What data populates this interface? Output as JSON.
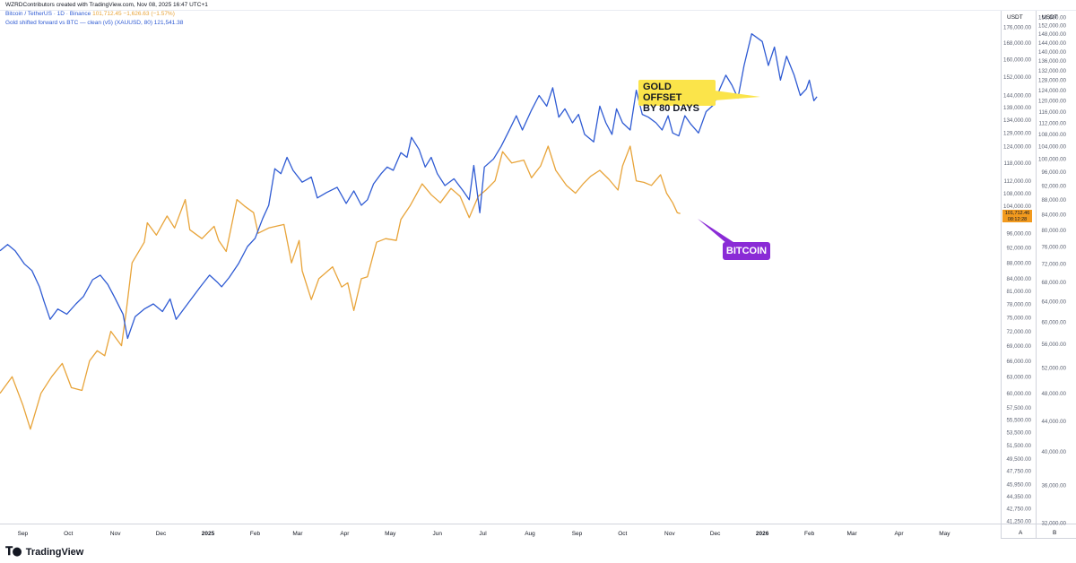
{
  "header": {
    "attribution": "WZRDContributors created with TradingView.com, Nov 08, 2025 16:47 UTC+1",
    "series1_name": "Bitcoin / TetherUS · 1D · Binance",
    "series1_values": "101,712.45  −1,626.63 (−1.57%)",
    "series2_label": "Gold shifted forward vs BTC — clean (v5) (XAUUSD, 80)  121,541.38"
  },
  "axis_units": {
    "left": "USDT",
    "right": "USDT"
  },
  "annotations": {
    "gold": [
      "GOLD OFFSET",
      "BY 80 DAYS"
    ],
    "bitcoin": "BITCOIN"
  },
  "last_price": {
    "value": "101,712.46",
    "countdown": "08:12:28"
  },
  "footer": {
    "brand": "TradingView",
    "btn_a": "A",
    "btn_b": "B"
  },
  "colors": {
    "bitcoin": "#e8a43a",
    "gold_shifted": "#2f5bd3",
    "annotation_gold": "#fbe44a",
    "annotation_btc": "#8a2bd6",
    "last_tag": "#f29a1e"
  },
  "chart_data": {
    "type": "line",
    "x_tick_labels": [
      "Sep",
      "Oct",
      "Nov",
      "Dec",
      "2025",
      "Feb",
      "Mar",
      "Apr",
      "May",
      "Jun",
      "Jul",
      "Aug",
      "Sep",
      "Oct",
      "Nov",
      "Dec",
      "2026",
      "Feb",
      "Mar",
      "Apr",
      "May"
    ],
    "xlim": [
      "2024-08-17",
      "2026-06-07"
    ],
    "left_axis": {
      "unit": "USDT",
      "scale": "log",
      "tick_labels": [
        "176,000.00",
        "168,000.00",
        "160,000.00",
        "152,000.00",
        "144,000.00",
        "139,000.00",
        "134,000.00",
        "129,000.00",
        "124,000.00",
        "118,000.00",
        "112,000.00",
        "108,000.00",
        "104,000.00",
        "100,000.00",
        "96,000.00",
        "92,000.00",
        "88,000.00",
        "84,000.00",
        "81,000.00",
        "78,000.00",
        "75,000.00",
        "72,000.00",
        "69,000.00",
        "66,000.00",
        "63,000.00",
        "60,000.00",
        "57,500.00",
        "55,500.00",
        "53,500.00",
        "51,500.00",
        "49,500.00",
        "47,750.00",
        "45,950.00",
        "44,350.00",
        "42,750.00",
        "41,250.00"
      ],
      "tick_values": [
        176000,
        168000,
        160000,
        152000,
        144000,
        139000,
        134000,
        129000,
        124000,
        118000,
        112000,
        108000,
        104000,
        100000,
        96000,
        92000,
        88000,
        84000,
        81000,
        78000,
        75000,
        72000,
        69000,
        66000,
        63000,
        60000,
        57500,
        55500,
        53500,
        51500,
        49500,
        47750,
        45950,
        44350,
        42750,
        41250
      ]
    },
    "right_axis": {
      "unit": "USDT",
      "scale": "log",
      "tick_labels": [
        "156,000.00",
        "152,000.00",
        "148,000.00",
        "144,000.00",
        "140,000.00",
        "136,000.00",
        "132,000.00",
        "128,000.00",
        "124,000.00",
        "120,000.00",
        "116,000.00",
        "112,000.00",
        "108,000.00",
        "104,000.00",
        "100,000.00",
        "96,000.00",
        "92,000.00",
        "88,000.00",
        "84,000.00",
        "80,000.00",
        "76,000.00",
        "72,000.00",
        "68,000.00",
        "64,000.00",
        "60,000.00",
        "56,000.00",
        "52,000.00",
        "48,000.00",
        "44,000.00",
        "40,000.00",
        "36,000.00",
        "32,000.00"
      ],
      "tick_values": [
        156000,
        152000,
        148000,
        144000,
        140000,
        136000,
        132000,
        128000,
        124000,
        120000,
        116000,
        112000,
        108000,
        104000,
        100000,
        96000,
        92000,
        88000,
        84000,
        80000,
        76000,
        72000,
        68000,
        64000,
        60000,
        56000,
        52000,
        48000,
        44000,
        40000,
        36000,
        32000
      ]
    },
    "series": [
      {
        "name": "Bitcoin / TetherUS",
        "axis": "left",
        "points": [
          [
            "2024-08-17",
            60000
          ],
          [
            "2024-08-25",
            63000
          ],
          [
            "2024-09-01",
            58000
          ],
          [
            "2024-09-06",
            54000
          ],
          [
            "2024-09-13",
            60000
          ],
          [
            "2024-09-20",
            63000
          ],
          [
            "2024-09-27",
            65500
          ],
          [
            "2024-10-03",
            61000
          ],
          [
            "2024-10-10",
            60500
          ],
          [
            "2024-10-15",
            66000
          ],
          [
            "2024-10-20",
            68000
          ],
          [
            "2024-10-25",
            67000
          ],
          [
            "2024-10-29",
            72000
          ],
          [
            "2024-11-05",
            69000
          ],
          [
            "2024-11-08",
            76000
          ],
          [
            "2024-11-12",
            88000
          ],
          [
            "2024-11-20",
            93500
          ],
          [
            "2024-11-22",
            99000
          ],
          [
            "2024-11-28",
            95500
          ],
          [
            "2024-12-05",
            101000
          ],
          [
            "2024-12-10",
            97500
          ],
          [
            "2024-12-17",
            106000
          ],
          [
            "2024-12-20",
            97000
          ],
          [
            "2024-12-28",
            94500
          ],
          [
            "2025-01-05",
            98000
          ],
          [
            "2025-01-08",
            94000
          ],
          [
            "2025-01-13",
            91000
          ],
          [
            "2025-01-20",
            106000
          ],
          [
            "2025-01-25",
            104000
          ],
          [
            "2025-01-31",
            102000
          ],
          [
            "2025-02-03",
            96000
          ],
          [
            "2025-02-10",
            97500
          ],
          [
            "2025-02-20",
            98500
          ],
          [
            "2025-02-25",
            88000
          ],
          [
            "2025-03-02",
            94000
          ],
          [
            "2025-03-04",
            86000
          ],
          [
            "2025-03-10",
            79000
          ],
          [
            "2025-03-15",
            84000
          ],
          [
            "2025-03-24",
            87000
          ],
          [
            "2025-03-30",
            82000
          ],
          [
            "2025-04-03",
            83000
          ],
          [
            "2025-04-07",
            76500
          ],
          [
            "2025-04-12",
            84000
          ],
          [
            "2025-04-16",
            84500
          ],
          [
            "2025-04-22",
            93500
          ],
          [
            "2025-04-28",
            94500
          ],
          [
            "2025-05-05",
            94000
          ],
          [
            "2025-05-08",
            100000
          ],
          [
            "2025-05-14",
            104000
          ],
          [
            "2025-05-22",
            111000
          ],
          [
            "2025-05-28",
            107500
          ],
          [
            "2025-06-03",
            105000
          ],
          [
            "2025-06-10",
            109500
          ],
          [
            "2025-06-16",
            107000
          ],
          [
            "2025-06-22",
            100500
          ],
          [
            "2025-06-28",
            107000
          ],
          [
            "2025-07-03",
            109000
          ],
          [
            "2025-07-09",
            112000
          ],
          [
            "2025-07-14",
            122000
          ],
          [
            "2025-07-20",
            118000
          ],
          [
            "2025-07-28",
            119000
          ],
          [
            "2025-08-02",
            113000
          ],
          [
            "2025-08-08",
            117000
          ],
          [
            "2025-08-13",
            124000
          ],
          [
            "2025-08-18",
            115500
          ],
          [
            "2025-08-25",
            110500
          ],
          [
            "2025-08-31",
            108000
          ],
          [
            "2025-09-05",
            111000
          ],
          [
            "2025-09-10",
            113500
          ],
          [
            "2025-09-16",
            115500
          ],
          [
            "2025-09-22",
            112500
          ],
          [
            "2025-09-28",
            109000
          ],
          [
            "2025-10-01",
            117000
          ],
          [
            "2025-10-06",
            124000
          ],
          [
            "2025-10-10",
            112000
          ],
          [
            "2025-10-15",
            111500
          ],
          [
            "2025-10-20",
            110500
          ],
          [
            "2025-10-26",
            114000
          ],
          [
            "2025-10-30",
            108000
          ],
          [
            "2025-11-03",
            105000
          ],
          [
            "2025-11-06",
            102000
          ],
          [
            "2025-11-08",
            101712
          ]
        ]
      },
      {
        "name": "Gold shifted forward vs BTC — clean (v5) (XAUUSD, 80)",
        "axis": "right",
        "points": [
          [
            "2024-08-17",
            75000
          ],
          [
            "2024-08-22",
            76500
          ],
          [
            "2024-08-27",
            75000
          ],
          [
            "2024-09-02",
            72000
          ],
          [
            "2024-09-07",
            70500
          ],
          [
            "2024-09-12",
            67000
          ],
          [
            "2024-09-15",
            64000
          ],
          [
            "2024-09-19",
            60500
          ],
          [
            "2024-09-24",
            62500
          ],
          [
            "2024-09-30",
            61500
          ],
          [
            "2024-10-06",
            63500
          ],
          [
            "2024-10-11",
            65000
          ],
          [
            "2024-10-17",
            68500
          ],
          [
            "2024-10-22",
            69500
          ],
          [
            "2024-10-27",
            67500
          ],
          [
            "2024-11-01",
            64500
          ],
          [
            "2024-11-06",
            61500
          ],
          [
            "2024-11-09",
            57000
          ],
          [
            "2024-11-14",
            61000
          ],
          [
            "2024-11-20",
            62500
          ],
          [
            "2024-11-26",
            63500
          ],
          [
            "2024-12-02",
            62000
          ],
          [
            "2024-12-07",
            64500
          ],
          [
            "2024-12-11",
            60500
          ],
          [
            "2024-12-16",
            62500
          ],
          [
            "2024-12-21",
            64500
          ],
          [
            "2024-12-27",
            67000
          ],
          [
            "2025-01-02",
            69500
          ],
          [
            "2025-01-07",
            68000
          ],
          [
            "2025-01-10",
            67000
          ],
          [
            "2025-01-15",
            69000
          ],
          [
            "2025-01-21",
            72000
          ],
          [
            "2025-01-27",
            76000
          ],
          [
            "2025-02-01",
            78000
          ],
          [
            "2025-02-06",
            83000
          ],
          [
            "2025-02-10",
            86500
          ],
          [
            "2025-02-14",
            97000
          ],
          [
            "2025-02-18",
            95500
          ],
          [
            "2025-02-22",
            100500
          ],
          [
            "2025-02-26",
            96500
          ],
          [
            "2025-03-04",
            93000
          ],
          [
            "2025-03-10",
            94500
          ],
          [
            "2025-03-14",
            88500
          ],
          [
            "2025-03-20",
            90000
          ],
          [
            "2025-03-27",
            91500
          ],
          [
            "2025-04-02",
            87000
          ],
          [
            "2025-04-07",
            90500
          ],
          [
            "2025-04-12",
            86500
          ],
          [
            "2025-04-16",
            88000
          ],
          [
            "2025-04-20",
            92500
          ],
          [
            "2025-04-25",
            95500
          ],
          [
            "2025-04-29",
            97500
          ],
          [
            "2025-05-03",
            96500
          ],
          [
            "2025-05-08",
            102000
          ],
          [
            "2025-05-12",
            100500
          ],
          [
            "2025-05-15",
            107000
          ],
          [
            "2025-05-20",
            103000
          ],
          [
            "2025-05-24",
            97500
          ],
          [
            "2025-05-28",
            100500
          ],
          [
            "2025-06-01",
            95500
          ],
          [
            "2025-06-06",
            92000
          ],
          [
            "2025-06-12",
            94000
          ],
          [
            "2025-06-18",
            90500
          ],
          [
            "2025-06-22",
            88000
          ],
          [
            "2025-06-25",
            98000
          ],
          [
            "2025-06-29",
            84500
          ],
          [
            "2025-07-02",
            97500
          ],
          [
            "2025-07-08",
            100000
          ],
          [
            "2025-07-13",
            104000
          ],
          [
            "2025-07-18",
            109000
          ],
          [
            "2025-07-23",
            114500
          ],
          [
            "2025-07-27",
            109500
          ],
          [
            "2025-08-02",
            116500
          ],
          [
            "2025-08-07",
            122000
          ],
          [
            "2025-08-12",
            118000
          ],
          [
            "2025-08-16",
            125000
          ],
          [
            "2025-08-20",
            114000
          ],
          [
            "2025-08-24",
            117000
          ],
          [
            "2025-08-29",
            112000
          ],
          [
            "2025-09-02",
            115000
          ],
          [
            "2025-09-06",
            108000
          ],
          [
            "2025-09-12",
            105500
          ],
          [
            "2025-09-16",
            118000
          ],
          [
            "2025-09-20",
            112000
          ],
          [
            "2025-09-24",
            108000
          ],
          [
            "2025-09-27",
            117000
          ],
          [
            "2025-10-01",
            112000
          ],
          [
            "2025-10-06",
            109500
          ],
          [
            "2025-10-10",
            124000
          ],
          [
            "2025-10-14",
            115000
          ],
          [
            "2025-10-18",
            114000
          ],
          [
            "2025-10-23",
            112000
          ],
          [
            "2025-10-27",
            109500
          ],
          [
            "2025-10-31",
            114500
          ],
          [
            "2025-11-03",
            108500
          ],
          [
            "2025-11-07",
            107500
          ],
          [
            "2025-11-11",
            114500
          ],
          [
            "2025-11-15",
            111500
          ],
          [
            "2025-11-20",
            108500
          ],
          [
            "2025-11-25",
            116000
          ],
          [
            "2025-11-30",
            118500
          ],
          [
            "2025-12-04",
            124500
          ],
          [
            "2025-12-08",
            130000
          ],
          [
            "2025-12-12",
            126000
          ],
          [
            "2025-12-16",
            121000
          ],
          [
            "2025-12-20",
            134000
          ],
          [
            "2025-12-25",
            148000
          ],
          [
            "2026-01-01",
            144500
          ],
          [
            "2026-01-05",
            134000
          ],
          [
            "2026-01-09",
            142000
          ],
          [
            "2026-01-13",
            128000
          ],
          [
            "2026-01-17",
            138000
          ],
          [
            "2026-01-22",
            130000
          ],
          [
            "2026-01-26",
            122000
          ],
          [
            "2026-01-30",
            124500
          ],
          [
            "2026-02-01",
            128000
          ],
          [
            "2026-02-04",
            120000
          ],
          [
            "2026-02-06",
            121541
          ]
        ]
      }
    ],
    "grid": false
  }
}
